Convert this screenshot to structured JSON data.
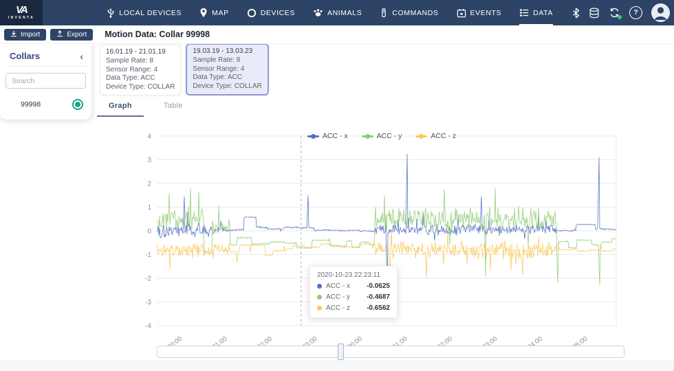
{
  "navbar": {
    "brand": "INVENTA",
    "brand_mark": "VA",
    "items": [
      {
        "label": "LOCAL DEVICES",
        "icon": "usb-icon",
        "active": false
      },
      {
        "label": "MAP",
        "icon": "map-pin-icon",
        "active": false
      },
      {
        "label": "DEVICES",
        "icon": "ring-icon",
        "active": false
      },
      {
        "label": "ANIMALS",
        "icon": "paw-icon",
        "active": false
      },
      {
        "label": "COMMANDS",
        "icon": "remote-icon",
        "active": false
      },
      {
        "label": "EVENTS",
        "icon": "calendar-icon",
        "active": false
      },
      {
        "label": "DATA",
        "icon": "list-icon",
        "active": true
      }
    ],
    "right_icons": [
      "bluetooth-icon",
      "database-icon",
      "sync-icon",
      "help-icon",
      "avatar"
    ],
    "sync_status_color": "#2ecc71",
    "bar_color": "#2e4466"
  },
  "subheader": {
    "import_label": "Import",
    "export_label": "Export",
    "title": "Motion Data: Collar 99998"
  },
  "sidebar": {
    "title": "Collars",
    "search_placeholder": "Search",
    "items": [
      {
        "label": "99998",
        "selected": true
      }
    ],
    "radio_color": "#17a38c"
  },
  "dataset_cards": [
    {
      "range": "16.01.19 - 21.01.19",
      "sample_rate": "Sample Rate: 8",
      "sensor_range": "Sensor Range: 4",
      "data_type": "Data Type: ACC",
      "device_type": "Device Type: COLLAR",
      "selected": false
    },
    {
      "range": "19.03.19 - 13.03.23",
      "sample_rate": "Sample Rate: 8",
      "sensor_range": "Sensor Range: 4",
      "data_type": "Data Type: ACC",
      "device_type": "Device Type: COLLAR",
      "selected": true
    }
  ],
  "tabs": [
    {
      "label": "Graph",
      "active": true
    },
    {
      "label": "Table",
      "active": false
    }
  ],
  "chart_data": {
    "type": "line",
    "title": "",
    "series": [
      {
        "key": "x",
        "name": "ACC - x",
        "color": "#5470c6"
      },
      {
        "key": "y",
        "name": "ACC - y",
        "color": "#91cc75"
      },
      {
        "key": "z",
        "name": "ACC - z",
        "color": "#fac858"
      }
    ],
    "ylim": [
      -4,
      4
    ],
    "yticks": [
      4,
      3,
      2,
      1,
      0,
      -1,
      -2,
      -3,
      -4
    ],
    "xticks": [
      "20:00",
      "21:00",
      "22:00",
      "23:00",
      "00:00",
      "01:00",
      "02:00",
      "03:00",
      "04:00",
      "05:00"
    ],
    "grid": true,
    "legend_position": "top-center",
    "crosshair_frac": 0.314,
    "datazoom_thumb_frac": 0.391,
    "tooltip": {
      "timestamp": "2020-10-23 22:23:11",
      "rows": [
        {
          "label": "ACC - x",
          "value": "-0.0625"
        },
        {
          "label": "ACC - y",
          "value": "-0.4687"
        },
        {
          "label": "ACC - z",
          "value": "-0.6562"
        }
      ]
    },
    "noise_segments": [
      {
        "f0": 0.0,
        "f1": 0.123,
        "mode": "noise",
        "x": {
          "m": 0.02,
          "a": 0.38
        },
        "y": {
          "m": 0.45,
          "a": 0.62
        },
        "z": {
          "m": -0.85,
          "a": 0.42
        }
      },
      {
        "f0": 0.123,
        "f1": 0.16,
        "mode": "noise",
        "x": {
          "m": 0.05,
          "a": 0.18
        },
        "y": {
          "m": 0.2,
          "a": 0.4
        },
        "z": {
          "m": -0.75,
          "a": 0.28
        }
      },
      {
        "f0": 0.16,
        "f1": 0.34,
        "mode": "steps",
        "x": {
          "m": 0.12,
          "a": 0.1
        },
        "y": {
          "m": -0.5,
          "a": 0.22
        },
        "z": {
          "m": -0.7,
          "a": 0.18
        }
      },
      {
        "f0": 0.34,
        "f1": 0.474,
        "mode": "steps",
        "x": {
          "m": 0.06,
          "a": 0.08
        },
        "y": {
          "m": -0.55,
          "a": 0.18
        },
        "z": {
          "m": -0.65,
          "a": 0.14
        }
      },
      {
        "f0": 0.474,
        "f1": 0.871,
        "mode": "noise",
        "x": {
          "m": 0.05,
          "a": 0.3
        },
        "y": {
          "m": 0.5,
          "a": 0.6
        },
        "z": {
          "m": -0.8,
          "a": 0.42
        }
      },
      {
        "f0": 0.871,
        "f1": 0.958,
        "mode": "steps",
        "x": {
          "m": 0.05,
          "a": 0.05
        },
        "y": {
          "m": -0.45,
          "a": 0.3
        },
        "z": {
          "m": -0.85,
          "a": 0.06
        }
      },
      {
        "f0": 0.958,
        "f1": 1.0,
        "mode": "steps",
        "x": {
          "m": 0.05,
          "a": 0.06
        },
        "y": {
          "m": -0.45,
          "a": 0.22
        },
        "z": {
          "m": -0.8,
          "a": 0.12
        }
      }
    ],
    "blocks": [
      {
        "s": "x",
        "f0": 0.19,
        "f1": 0.216,
        "v": 0.58
      },
      {
        "s": "x",
        "f0": 0.913,
        "f1": 0.953,
        "v": 0.27
      },
      {
        "s": "y",
        "f0": 0.104,
        "f1": 0.12,
        "v": -0.92
      },
      {
        "s": "z",
        "f0": 0.236,
        "f1": 0.252,
        "v": -1.02
      }
    ],
    "spikes": [
      {
        "s": "x",
        "f": 0.06,
        "v": 1.45
      },
      {
        "s": "x",
        "f": 0.329,
        "v": 1.5
      },
      {
        "s": "x",
        "f": 0.501,
        "v": -2.35
      },
      {
        "s": "x",
        "f": 0.545,
        "v": 3.25
      },
      {
        "s": "x",
        "f": 0.707,
        "v": 1.45
      },
      {
        "s": "x",
        "f": 0.962,
        "v": 3.1
      },
      {
        "s": "y",
        "f": 0.716,
        "v": -1.9
      },
      {
        "s": "y",
        "f": 0.873,
        "v": -2.2
      },
      {
        "s": "y",
        "f": 0.964,
        "v": -2.3
      },
      {
        "s": "z",
        "f": 0.175,
        "v": -1.35
      },
      {
        "s": "z",
        "f": 0.507,
        "v": -1.9
      },
      {
        "s": "z",
        "f": 0.587,
        "v": -1.95
      },
      {
        "s": "z",
        "f": 0.796,
        "v": -1.85
      }
    ]
  }
}
